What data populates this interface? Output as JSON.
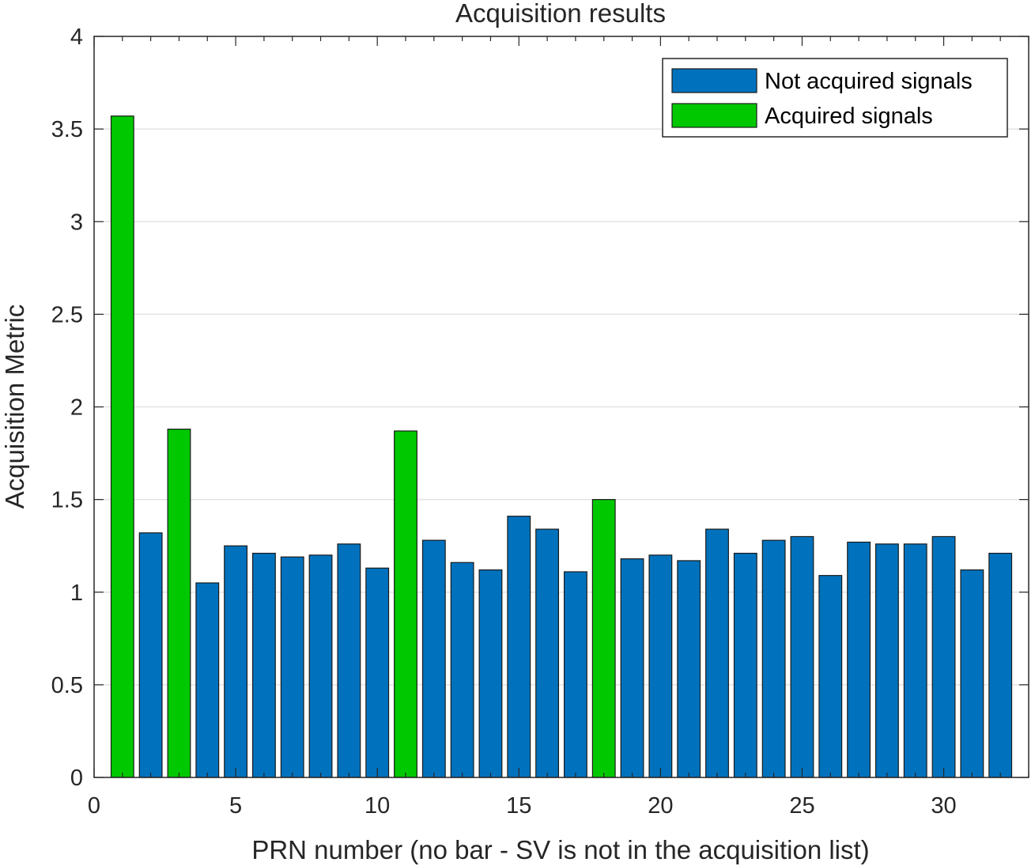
{
  "chart_data": {
    "type": "bar",
    "title": "Acquisition results",
    "xlabel": "PRN number (no bar - SV is not in the acquisition list)",
    "ylabel": "Acquisition Metric",
    "xlim": [
      0,
      33
    ],
    "ylim": [
      0,
      4
    ],
    "x_ticks": [
      0,
      5,
      10,
      15,
      20,
      25,
      30
    ],
    "y_ticks": [
      0,
      0.5,
      1,
      1.5,
      2,
      2.5,
      3,
      3.5,
      4
    ],
    "grid": true,
    "legend_position": "top-right",
    "x": [
      1,
      2,
      3,
      4,
      5,
      6,
      7,
      8,
      9,
      10,
      11,
      12,
      13,
      14,
      15,
      16,
      17,
      18,
      19,
      20,
      21,
      22,
      23,
      24,
      25,
      26,
      27,
      28,
      29,
      30,
      31,
      32
    ],
    "values": [
      3.57,
      1.32,
      1.88,
      1.05,
      1.25,
      1.21,
      1.19,
      1.2,
      1.26,
      1.13,
      1.87,
      1.28,
      1.16,
      1.12,
      1.41,
      1.34,
      1.11,
      1.5,
      1.18,
      1.2,
      1.17,
      1.34,
      1.21,
      1.28,
      1.3,
      1.09,
      1.27,
      1.26,
      1.26,
      1.3,
      1.12,
      1.21
    ],
    "series": [
      {
        "name": "Not acquired signals",
        "color": "#0072bd",
        "x": [
          2,
          4,
          5,
          6,
          7,
          8,
          9,
          10,
          12,
          13,
          14,
          15,
          16,
          17,
          19,
          20,
          21,
          22,
          23,
          24,
          25,
          26,
          27,
          28,
          29,
          30,
          31,
          32
        ]
      },
      {
        "name": "Acquired signals",
        "color": "#00c800",
        "x": [
          1,
          3,
          11,
          18
        ]
      }
    ]
  }
}
